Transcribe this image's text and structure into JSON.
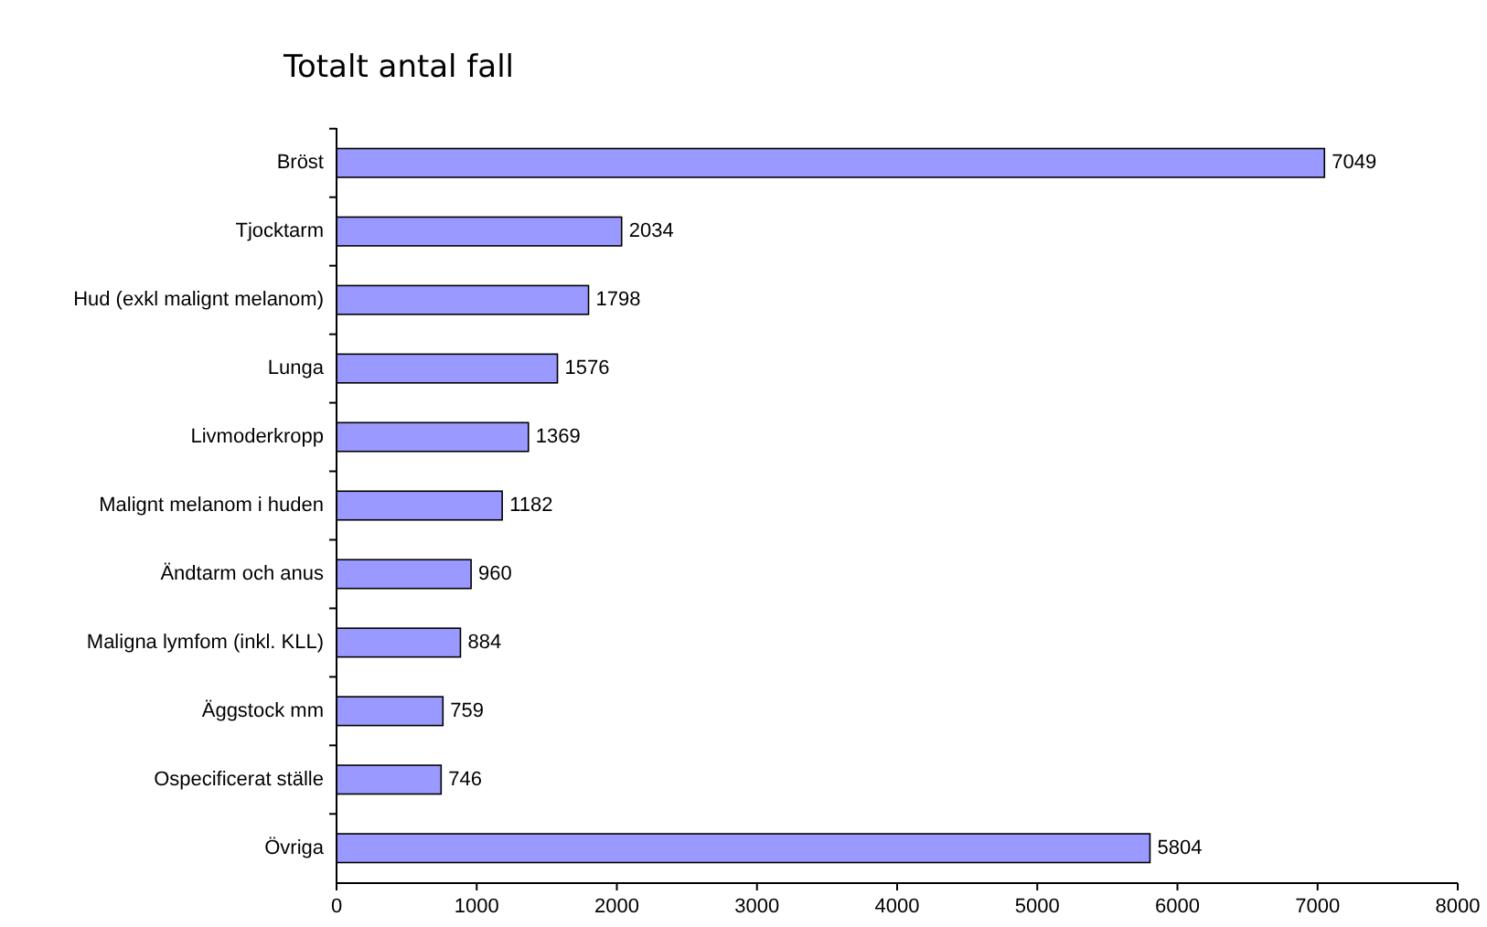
{
  "chart_data": {
    "type": "bar",
    "orientation": "horizontal",
    "title": "Totalt antal fall",
    "categories": [
      "Bröst",
      "Tjocktarm",
      "Hud (exkl malignt melanom)",
      "Lunga",
      "Livmoderkropp",
      "Malignt melanom i huden",
      "Ändtarm och anus",
      "Maligna lymfom (inkl. KLL)",
      "Äggstock mm",
      "Ospecificerat ställe",
      "Övriga"
    ],
    "values": [
      7049,
      2034,
      1798,
      1576,
      1369,
      1182,
      960,
      884,
      759,
      746,
      5804
    ],
    "color": "#9999ff",
    "xlim": [
      0,
      8000
    ],
    "xticks": [
      0,
      1000,
      2000,
      3000,
      4000,
      5000,
      6000,
      7000,
      8000
    ],
    "data_labels": true
  }
}
